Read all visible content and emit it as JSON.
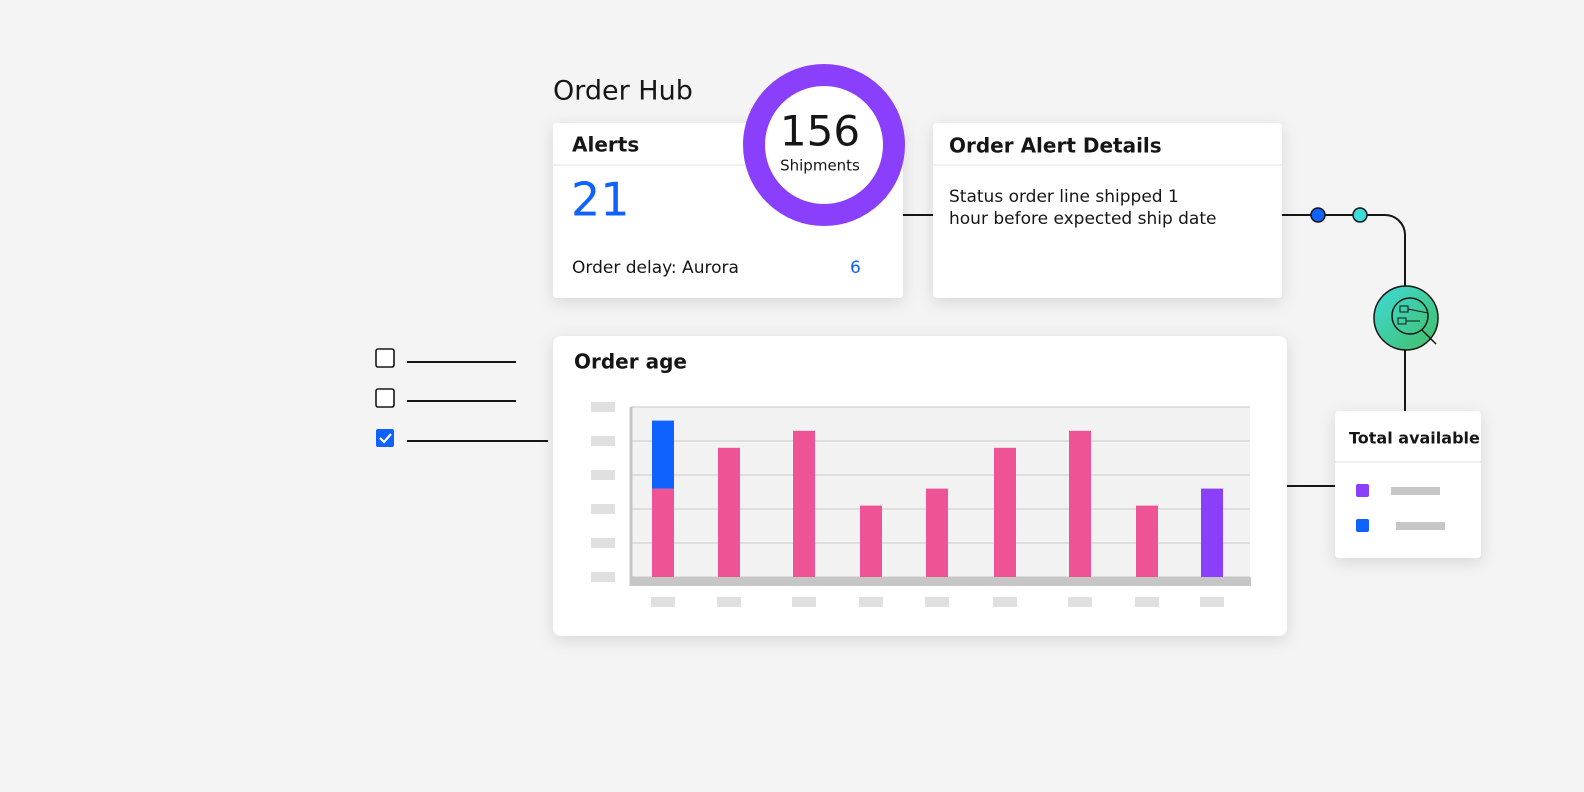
{
  "header": {
    "title": "Order Hub"
  },
  "alerts_card": {
    "title": "Alerts",
    "count": "21",
    "row_label": "Order delay: Aurora",
    "row_value": "6"
  },
  "shipments": {
    "value": "156",
    "label": "Shipments"
  },
  "details_card": {
    "title": "Order Alert Details",
    "lines": [
      "Status order line shipped 1",
      "hour before expected ship date"
    ]
  },
  "chart_data": {
    "type": "bar",
    "title": "Order age",
    "categories": [
      null,
      null,
      null,
      null,
      null,
      null,
      null,
      null,
      null
    ],
    "series": [
      {
        "color": "#ee5396",
        "values": [
          2.6,
          3.8,
          4.3,
          2.1,
          2.6,
          3.8,
          4.3,
          2.1,
          null
        ]
      },
      {
        "color": "#0f62fe",
        "values": [
          2.0,
          null,
          null,
          null,
          null,
          null,
          null,
          null,
          null
        ]
      },
      {
        "color": "#8a3ffc",
        "values": [
          null,
          null,
          null,
          null,
          null,
          null,
          null,
          null,
          2.6
        ]
      }
    ],
    "ylim": [
      0,
      5
    ],
    "yticks": [
      0,
      1,
      2,
      3,
      4,
      5
    ],
    "grid": true
  },
  "legend_card": {
    "title": "Total available"
  }
}
